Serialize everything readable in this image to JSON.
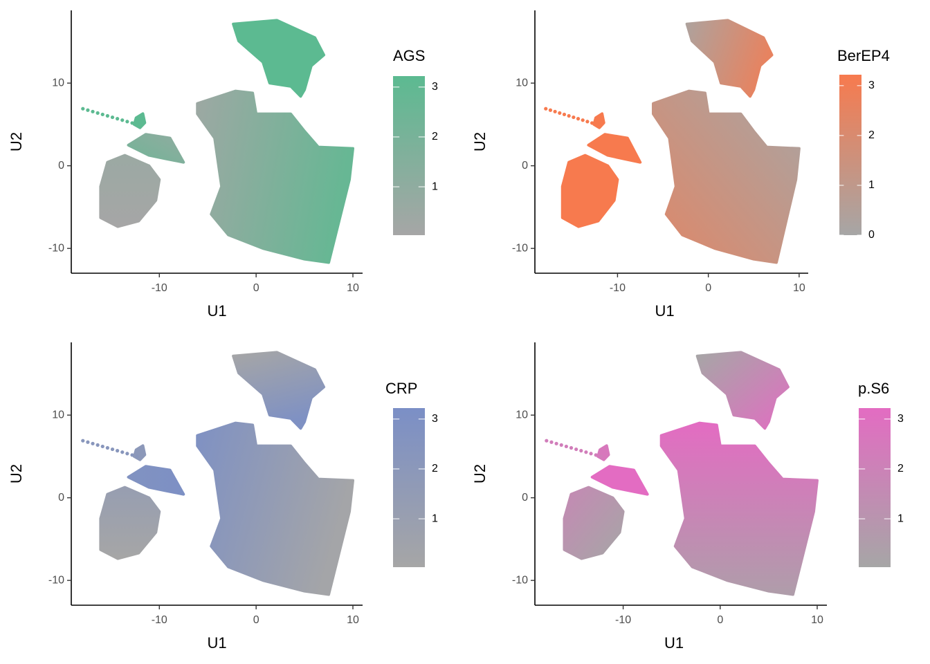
{
  "chart_data": [
    {
      "type": "scatter",
      "xlabel": "U1",
      "ylabel": "U2",
      "xlim": [
        -19.1,
        11
      ],
      "ylim": [
        -13,
        18.8
      ],
      "xticks": [
        -10,
        0,
        10
      ],
      "yticks": [
        -10,
        0,
        10
      ],
      "colorbar": {
        "title": "AGS",
        "lim": [
          0.03,
          3.22
        ],
        "ticks": [
          1,
          2,
          3
        ],
        "low_color": "#a6a6a6",
        "high_color": "#5cba91"
      }
    },
    {
      "type": "scatter",
      "xlabel": "U1",
      "ylabel": "U2",
      "xlim": [
        -19.1,
        11
      ],
      "ylim": [
        -13,
        18.8
      ],
      "xticks": [
        -10,
        0,
        10
      ],
      "yticks": [
        -10,
        0,
        10
      ],
      "colorbar": {
        "title": "BerEP4",
        "lim": [
          0,
          3.22
        ],
        "ticks": [
          0,
          1,
          2,
          3
        ],
        "low_color": "#a6a6a6",
        "high_color": "#f77a4e"
      }
    },
    {
      "type": "scatter",
      "xlabel": "U1",
      "ylabel": "U2",
      "xlim": [
        -19.1,
        11
      ],
      "ylim": [
        -13,
        18.8
      ],
      "xticks": [
        -10,
        0,
        10
      ],
      "yticks": [
        -10,
        0,
        10
      ],
      "colorbar": {
        "title": "CRP",
        "lim": [
          0.03,
          3.22
        ],
        "ticks": [
          1,
          2,
          3
        ],
        "low_color": "#a6a6a6",
        "high_color": "#7b8fc6"
      }
    },
    {
      "type": "scatter",
      "xlabel": "U1",
      "ylabel": "U2",
      "xlim": [
        -19.1,
        11
      ],
      "ylim": [
        -13,
        18.8
      ],
      "xticks": [
        -10,
        0,
        10
      ],
      "yticks": [
        -10,
        0,
        10
      ],
      "colorbar": {
        "title": "p.S6",
        "lim": [
          0.03,
          3.22
        ],
        "ticks": [
          1,
          2,
          3
        ],
        "low_color": "#a6a6a6",
        "high_color": "#e36cc2"
      }
    }
  ]
}
